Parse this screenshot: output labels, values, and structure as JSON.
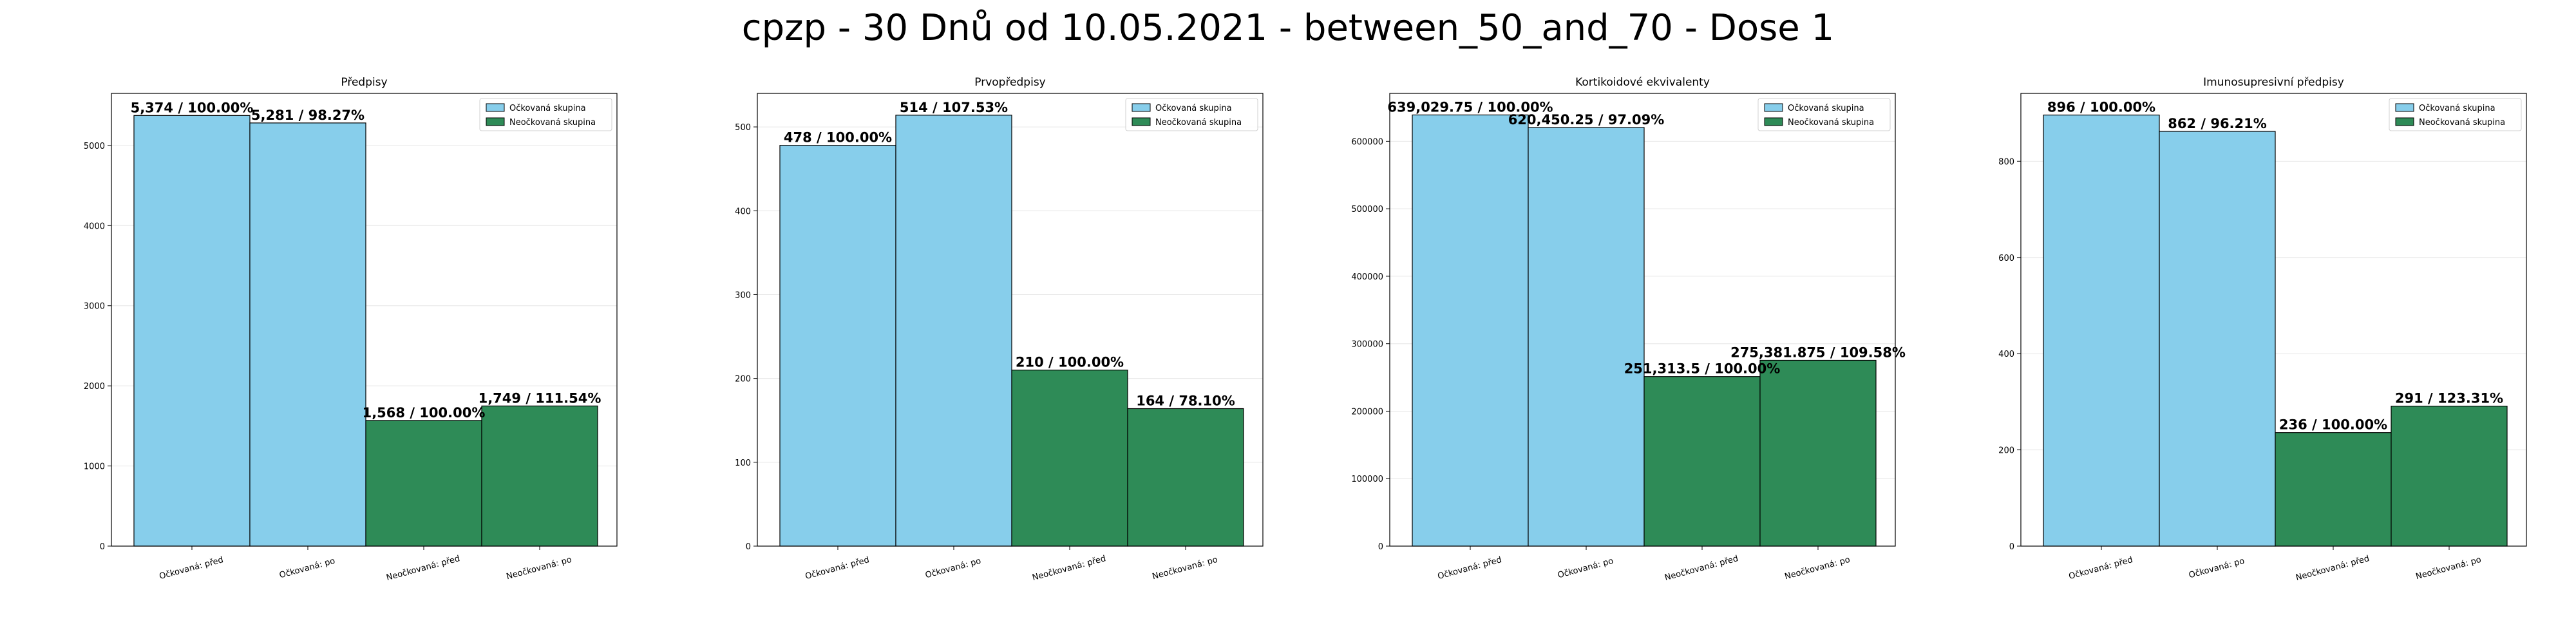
{
  "suptitle": "cpzp - 30 Dnů od 10.05.2021 - between_50_and_70 - Dose 1",
  "colors": {
    "vaccinated": "#87CEEB",
    "unvaccinated": "#2E8B57"
  },
  "chart_data": [
    {
      "type": "bar",
      "title": "Předpisy",
      "categories": [
        "Očkovaná: před",
        "Očkovaná: po",
        "Neočkovaná: před",
        "Neočkovaná: po"
      ],
      "values": [
        5374,
        5281,
        1568,
        1749
      ],
      "labels": [
        "5,374 / 100.00%",
        "5,281 / 98.27%",
        "1,568 / 100.00%",
        "1,749 / 111.54%"
      ],
      "groups": [
        "vaccinated",
        "vaccinated",
        "unvaccinated",
        "unvaccinated"
      ],
      "legend": [
        "Očkovaná skupina",
        "Neočkovaná skupina"
      ],
      "legend_loc": "upper right",
      "ylim": [
        0,
        5650
      ],
      "yticks": [
        0,
        1000,
        2000,
        3000,
        4000,
        5000
      ],
      "ytick_labels": [
        "0",
        "1000",
        "2000",
        "3000",
        "4000",
        "5000"
      ],
      "grid": "y"
    },
    {
      "type": "bar",
      "title": "Prvopředpisy",
      "categories": [
        "Očkovaná: před",
        "Očkovaná: po",
        "Neočkovaná: před",
        "Neočkovaná: po"
      ],
      "values": [
        478,
        514,
        210,
        164
      ],
      "labels": [
        "478 / 100.00%",
        "514 / 107.53%",
        "210 / 100.00%",
        "164 / 78.10%"
      ],
      "groups": [
        "vaccinated",
        "vaccinated",
        "unvaccinated",
        "unvaccinated"
      ],
      "legend": [
        "Očkovaná skupina",
        "Neočkovaná skupina"
      ],
      "legend_loc": "upper right",
      "ylim": [
        0,
        540
      ],
      "yticks": [
        0,
        100,
        200,
        300,
        400,
        500
      ],
      "ytick_labels": [
        "0",
        "100",
        "200",
        "300",
        "400",
        "500"
      ],
      "grid": "y"
    },
    {
      "type": "bar",
      "title": "Kortikoidové ekvivalenty",
      "categories": [
        "Očkovaná: před",
        "Očkovaná: po",
        "Neočkovaná: před",
        "Neočkovaná: po"
      ],
      "values": [
        639029.75,
        620450.25,
        251313.5,
        275381.875
      ],
      "labels": [
        "639,029.75 / 100.00%",
        "620,450.25 / 97.09%",
        "251,313.5 / 100.00%",
        "275,381.875 / 109.58%"
      ],
      "groups": [
        "vaccinated",
        "vaccinated",
        "unvaccinated",
        "unvaccinated"
      ],
      "legend": [
        "Očkovaná skupina",
        "Neočkovaná skupina"
      ],
      "legend_loc": "upper right",
      "ylim": [
        0,
        671000
      ],
      "yticks": [
        0,
        100000,
        200000,
        300000,
        400000,
        500000,
        600000
      ],
      "ytick_labels": [
        "0",
        "100000",
        "200000",
        "300000",
        "400000",
        "500000",
        "600000"
      ],
      "grid": "y"
    },
    {
      "type": "bar",
      "title": "Imunosupresivní předpisy",
      "categories": [
        "Očkovaná: před",
        "Očkovaná: po",
        "Neočkovaná: před",
        "Neočkovaná: po"
      ],
      "values": [
        896,
        862,
        236,
        291
      ],
      "labels": [
        "896 / 100.00%",
        "862 / 96.21%",
        "236 / 100.00%",
        "291 / 123.31%"
      ],
      "groups": [
        "vaccinated",
        "vaccinated",
        "unvaccinated",
        "unvaccinated"
      ],
      "legend": [
        "Očkovaná skupina",
        "Neočkovaná skupina"
      ],
      "legend_loc": "upper right",
      "ylim": [
        0,
        941
      ],
      "yticks": [
        0,
        200,
        400,
        600,
        800
      ],
      "ytick_labels": [
        "0",
        "200",
        "400",
        "600",
        "800"
      ],
      "grid": "y"
    }
  ]
}
